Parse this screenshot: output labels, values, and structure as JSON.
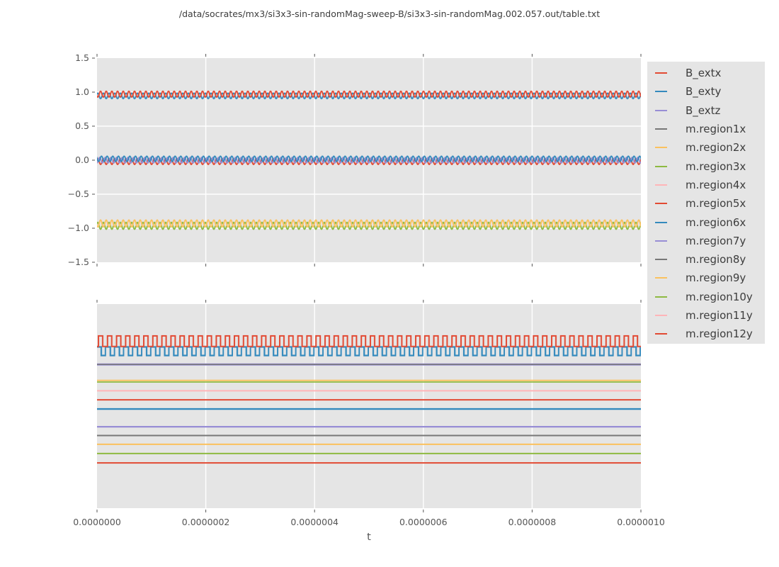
{
  "figure": {
    "title": "/data/socrates/mx3/si3x3-sin-randomMag-sweep-B/si3x3-sin-randomMag.002.057.out/table.txt",
    "xlabel": "t",
    "background": "#ffffff",
    "axes_background": "#e5e5e5",
    "grid_color": "#ffffff",
    "tick_color": "#555555",
    "text_color": "#555555"
  },
  "legend": {
    "entries": [
      {
        "label": "B_extx",
        "color": "#e24a33"
      },
      {
        "label": "B_exty",
        "color": "#348abd"
      },
      {
        "label": "B_extz",
        "color": "#988ed5"
      },
      {
        "label": "m.region1x",
        "color": "#777777"
      },
      {
        "label": "m.region2x",
        "color": "#fbc15e"
      },
      {
        "label": "m.region3x",
        "color": "#8eba42"
      },
      {
        "label": "m.region4x",
        "color": "#ffb5b8"
      },
      {
        "label": "m.region5x",
        "color": "#e24a33"
      },
      {
        "label": "m.region6x",
        "color": "#348abd"
      },
      {
        "label": "m.region7y",
        "color": "#988ed5"
      },
      {
        "label": "m.region8y",
        "color": "#777777"
      },
      {
        "label": "m.region9y",
        "color": "#fbc15e"
      },
      {
        "label": "m.region10y",
        "color": "#8eba42"
      },
      {
        "label": "m.region11y",
        "color": "#ffb5b8"
      },
      {
        "label": "m.region12y",
        "color": "#e24a33"
      }
    ]
  },
  "chart_data": [
    {
      "type": "line",
      "panel": "top",
      "xlim": [
        0,
        1e-06
      ],
      "ylim": [
        -1.5,
        1.5
      ],
      "yticks": [
        1.5,
        1.0,
        0.5,
        0.0,
        -0.5,
        -1.0,
        -1.5
      ],
      "ytick_labels": [
        "1.5",
        "1.0",
        "0.5",
        "0.0",
        "−0.5",
        "−1.0",
        "−1.5"
      ],
      "xtick_labels_shown": false,
      "grid": true,
      "description": "High-frequency sinusoidal oscillations clustered near y≈0.96 (red/blue), y≈0 (red/purple/blue) and y≈-0.95 (green/orange); ~100 periods across the x range",
      "oscillating_lines": [
        {
          "band": "upper",
          "color": "#348abd",
          "center": 0.945,
          "amplitude": 0.04,
          "phase": 0
        },
        {
          "band": "upper",
          "color": "#e24a33",
          "center": 0.97,
          "amplitude": 0.042,
          "phase": 4
        },
        {
          "band": "middle",
          "color": "#e24a33",
          "center": -0.02,
          "amplitude": 0.042,
          "phase": 0
        },
        {
          "band": "middle",
          "color": "#988ed5",
          "center": 0.0,
          "amplitude": 0.04,
          "phase": 2.7
        },
        {
          "band": "middle",
          "color": "#348abd",
          "center": 0.02,
          "amplitude": 0.038,
          "phase": 5.3
        },
        {
          "band": "lower",
          "color": "#8eba42",
          "center": -0.965,
          "amplitude": 0.05,
          "phase": 0
        },
        {
          "band": "lower",
          "color": "#fbc15e",
          "center": -0.93,
          "amplitude": 0.05,
          "phase": 4
        }
      ]
    },
    {
      "type": "line",
      "panel": "bottom",
      "xlabel": "t",
      "xlim": [
        0,
        1e-06
      ],
      "xticks": [
        0,
        2e-07,
        4e-07,
        6e-07,
        8e-07,
        1e-06
      ],
      "xtick_labels": [
        "0.0000000",
        "0.0000002",
        "0.0000004",
        "0.0000006",
        "0.0000008",
        "0.0000010"
      ],
      "yticks_shown": false,
      "grid": "vertical-only",
      "description": "Two high-frequency square waves (red above blue) near the top of the panel and twelve constant horizontal lines below; y axis is unlabeled, positions given as fraction of panel height from its top",
      "square_waves": [
        {
          "color": "#348abd",
          "y_frac_base": 0.21,
          "y_frac_peak": 0.252,
          "pulse_x": [
            6,
            12
          ],
          "stroke": 2.2
        },
        {
          "color": "#e24a33",
          "y_frac_base": 0.208,
          "y_frac_peak": 0.156,
          "pulse_x": [
            2,
            8
          ],
          "stroke": 2
        }
      ],
      "flat_lines": [
        {
          "color": "#988ed5",
          "y_frac": 0.296,
          "width": 3.0
        },
        {
          "color": "#777777",
          "y_frac": 0.296,
          "width": 1.5
        },
        {
          "color": "#fbc15e",
          "y_frac": 0.374,
          "width": 1.8
        },
        {
          "color": "#8eba42",
          "y_frac": 0.382,
          "width": 1.8
        },
        {
          "color": "#ffb5b8",
          "y_frac": 0.425,
          "width": 2.0
        },
        {
          "color": "#e24a33",
          "y_frac": 0.469,
          "width": 2.0
        },
        {
          "color": "#348abd",
          "y_frac": 0.514,
          "width": 2.4
        },
        {
          "color": "#988ed5",
          "y_frac": 0.601,
          "width": 2.2
        },
        {
          "color": "#777777",
          "y_frac": 0.644,
          "width": 2.0
        },
        {
          "color": "#fbc15e",
          "y_frac": 0.687,
          "width": 2.0
        },
        {
          "color": "#8eba42",
          "y_frac": 0.732,
          "width": 2.0
        },
        {
          "color": "#e24a33",
          "y_frac": 0.778,
          "width": 2.0
        }
      ]
    }
  ]
}
